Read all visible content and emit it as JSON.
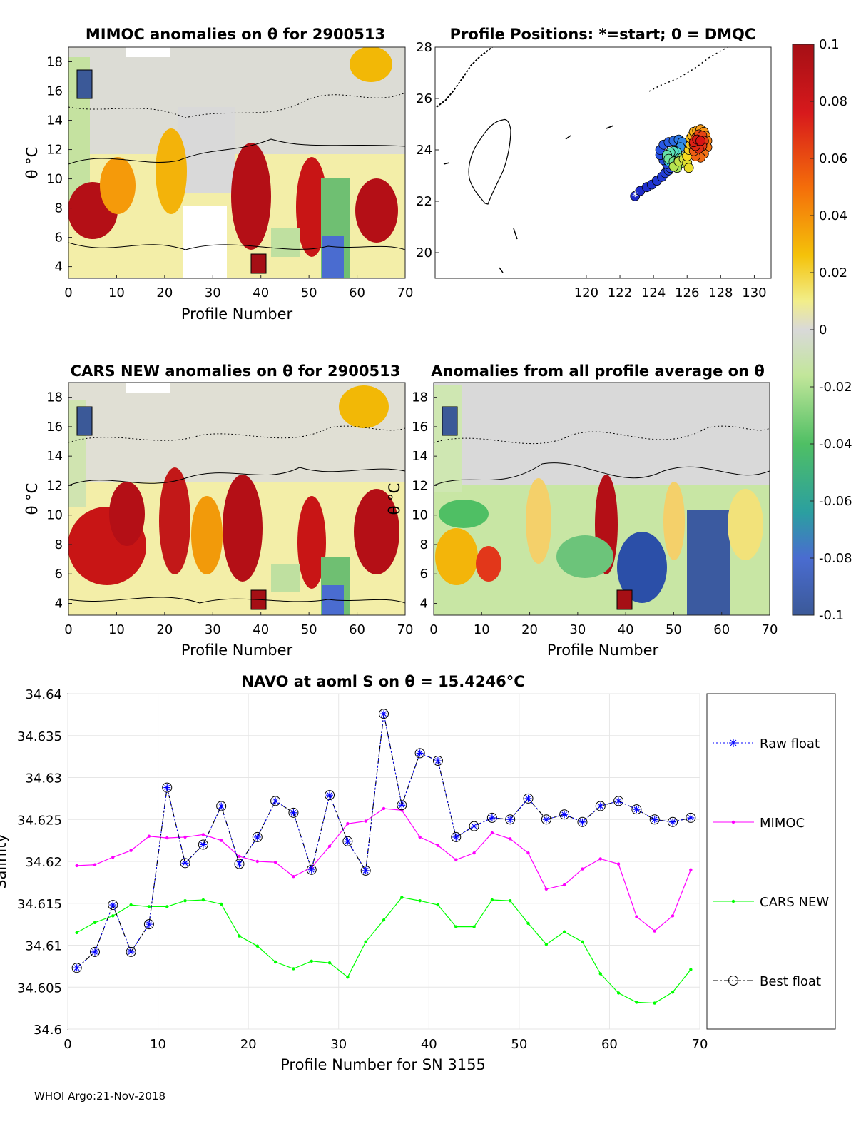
{
  "footer": "WHOI Argo:21-Nov-2018",
  "chart_data": [
    {
      "type": "heatmap",
      "id": "mimoc",
      "title": "MIMOC anomalies on θ  for 2900513",
      "xlabel": "Profile Number",
      "ylabel": "θ °C",
      "xlim": [
        0,
        70
      ],
      "ylim": [
        3.2,
        19
      ],
      "xticks": [
        0,
        10,
        20,
        30,
        40,
        50,
        60,
        70
      ],
      "yticks": [
        4,
        6,
        8,
        10,
        12,
        14,
        16,
        18
      ],
      "hot_columns": [
        2,
        3,
        4,
        5,
        6,
        7,
        8,
        9,
        10,
        11,
        12,
        13,
        14,
        15,
        16,
        17,
        18,
        36,
        37,
        38,
        39,
        40,
        41,
        47,
        48,
        49,
        50,
        51,
        60,
        61,
        62,
        63,
        64,
        65,
        66,
        67,
        68,
        69
      ]
    },
    {
      "type": "scatter",
      "id": "positions",
      "title": "Profile Positions: *=start; 0 = DMQC",
      "xlim": [
        111,
        131
      ],
      "ylim": [
        19,
        28
      ],
      "xticks": [
        120,
        122,
        124,
        126,
        128,
        130
      ],
      "yticks": [
        20,
        22,
        24,
        26,
        28
      ],
      "track": [
        {
          "lon": 122.9,
          "lat": 22.2
        },
        {
          "lon": 123.2,
          "lat": 22.4
        },
        {
          "lon": 123.6,
          "lat": 22.55
        },
        {
          "lon": 123.9,
          "lat": 22.65
        },
        {
          "lon": 124.2,
          "lat": 22.8
        },
        {
          "lon": 124.5,
          "lat": 22.95
        },
        {
          "lon": 124.7,
          "lat": 23.1
        },
        {
          "lon": 124.9,
          "lat": 23.2
        },
        {
          "lon": 125.0,
          "lat": 23.3
        },
        {
          "lon": 124.8,
          "lat": 23.45
        },
        {
          "lon": 124.6,
          "lat": 23.6
        },
        {
          "lon": 124.4,
          "lat": 23.8
        },
        {
          "lon": 124.4,
          "lat": 24.0
        },
        {
          "lon": 124.6,
          "lat": 24.2
        },
        {
          "lon": 124.9,
          "lat": 24.3
        },
        {
          "lon": 125.2,
          "lat": 24.35
        },
        {
          "lon": 125.5,
          "lat": 24.4
        },
        {
          "lon": 125.7,
          "lat": 24.3
        },
        {
          "lon": 125.6,
          "lat": 24.1
        },
        {
          "lon": 125.3,
          "lat": 23.95
        },
        {
          "lon": 125.0,
          "lat": 23.85
        },
        {
          "lon": 124.8,
          "lat": 23.7
        },
        {
          "lon": 124.9,
          "lat": 23.55
        },
        {
          "lon": 125.1,
          "lat": 23.5
        },
        {
          "lon": 125.3,
          "lat": 23.6
        },
        {
          "lon": 125.5,
          "lat": 23.75
        },
        {
          "lon": 125.4,
          "lat": 23.9
        },
        {
          "lon": 125.2,
          "lat": 23.95
        },
        {
          "lon": 125.0,
          "lat": 23.9
        },
        {
          "lon": 124.8,
          "lat": 23.8
        },
        {
          "lon": 124.9,
          "lat": 23.65
        },
        {
          "lon": 125.2,
          "lat": 23.55
        },
        {
          "lon": 125.5,
          "lat": 23.6
        },
        {
          "lon": 125.7,
          "lat": 23.7
        },
        {
          "lon": 125.9,
          "lat": 23.75
        },
        {
          "lon": 125.7,
          "lat": 23.5
        },
        {
          "lon": 125.4,
          "lat": 23.3
        },
        {
          "lon": 125.2,
          "lat": 23.35
        },
        {
          "lon": 125.5,
          "lat": 23.55
        },
        {
          "lon": 125.8,
          "lat": 23.65
        },
        {
          "lon": 126.0,
          "lat": 23.5
        },
        {
          "lon": 126.1,
          "lat": 23.3
        },
        {
          "lon": 126.0,
          "lat": 23.75
        },
        {
          "lon": 126.1,
          "lat": 24.0
        },
        {
          "lon": 126.2,
          "lat": 24.2
        },
        {
          "lon": 126.2,
          "lat": 24.45
        },
        {
          "lon": 126.3,
          "lat": 24.55
        },
        {
          "lon": 126.4,
          "lat": 24.7
        },
        {
          "lon": 126.6,
          "lat": 24.75
        },
        {
          "lon": 126.8,
          "lat": 24.8
        },
        {
          "lon": 127.0,
          "lat": 24.7
        },
        {
          "lon": 127.1,
          "lat": 24.55
        },
        {
          "lon": 127.2,
          "lat": 24.35
        },
        {
          "lon": 127.2,
          "lat": 24.1
        },
        {
          "lon": 127.0,
          "lat": 23.85
        },
        {
          "lon": 126.8,
          "lat": 23.7
        },
        {
          "lon": 126.5,
          "lat": 23.75
        },
        {
          "lon": 126.4,
          "lat": 23.95
        },
        {
          "lon": 126.4,
          "lat": 24.2
        },
        {
          "lon": 126.5,
          "lat": 24.45
        },
        {
          "lon": 126.7,
          "lat": 24.6
        },
        {
          "lon": 126.9,
          "lat": 24.55
        },
        {
          "lon": 127.0,
          "lat": 24.35
        },
        {
          "lon": 126.9,
          "lat": 24.15
        },
        {
          "lon": 126.7,
          "lat": 24.05
        },
        {
          "lon": 126.5,
          "lat": 24.15
        },
        {
          "lon": 126.4,
          "lat": 24.3
        },
        {
          "lon": 126.6,
          "lat": 24.4
        },
        {
          "lon": 126.8,
          "lat": 24.35
        }
      ]
    },
    {
      "type": "heatmap",
      "id": "colorbar",
      "ticks": [
        "0.1",
        "0.08",
        "0.06",
        "0.04",
        "0.02",
        "0",
        "-0.02",
        "-0.04",
        "-0.06",
        "-0.08",
        "-0.1"
      ],
      "range": [
        -0.1,
        0.1
      ]
    },
    {
      "type": "heatmap",
      "id": "cars",
      "title": "CARS NEW anomalies on θ for 2900513",
      "xlabel": "Profile Number",
      "ylabel": "θ °C",
      "xlim": [
        0,
        70
      ],
      "ylim": [
        3.2,
        19
      ],
      "xticks": [
        0,
        10,
        20,
        30,
        40,
        50,
        60,
        70
      ],
      "yticks": [
        4,
        6,
        8,
        10,
        12,
        14,
        16,
        18
      ]
    },
    {
      "type": "heatmap",
      "id": "allavg",
      "title": "Anomalies from all profile average on θ",
      "xlabel": "Profile Number",
      "ylabel": "θ °C",
      "xlim": [
        0,
        70
      ],
      "ylim": [
        3.2,
        19
      ],
      "xticks": [
        0,
        10,
        20,
        30,
        40,
        50,
        60,
        70
      ],
      "yticks": [
        4,
        6,
        8,
        10,
        12,
        14,
        16,
        18
      ]
    },
    {
      "type": "line",
      "id": "salinity",
      "title": "NAVO at aoml S on θ = 15.4246°C",
      "xlabel": "Profile Number for SN 3155",
      "ylabel": "Salinity",
      "xlim": [
        0,
        70
      ],
      "ylim": [
        34.6,
        34.64
      ],
      "xticks": [
        0,
        10,
        20,
        30,
        40,
        50,
        60,
        70
      ],
      "yticks": [
        "34.6",
        "34.605",
        "34.61",
        "34.615",
        "34.62",
        "34.625",
        "34.63",
        "34.635",
        "34.64"
      ],
      "x": [
        1,
        3,
        5,
        7,
        9,
        11,
        13,
        15,
        17,
        19,
        21,
        23,
        25,
        27,
        29,
        31,
        33,
        35,
        37,
        39,
        41,
        43,
        45,
        47,
        49,
        51,
        53,
        55,
        57,
        59,
        61,
        63,
        65,
        67,
        69
      ],
      "series": [
        {
          "name": "Raw float",
          "color": "#0000ff",
          "values": [
            34.6073,
            34.6092,
            34.6148,
            34.6092,
            34.6125,
            34.6288,
            34.6198,
            34.622,
            34.6266,
            34.6197,
            34.6229,
            34.6272,
            34.6258,
            34.619,
            34.6279,
            34.6224,
            34.6189,
            34.6376,
            34.6267,
            34.6329,
            34.632,
            34.6229,
            34.6242,
            34.6252,
            34.625,
            34.6275,
            34.625,
            34.6256,
            34.6247,
            34.6266,
            34.6272,
            34.6262,
            34.625,
            34.6247,
            34.6252
          ]
        },
        {
          "name": "MIMOC",
          "color": "#ff00ff",
          "values": [
            34.6195,
            34.6196,
            34.6205,
            34.6213,
            34.623,
            34.6228,
            34.6229,
            34.6232,
            34.6225,
            34.6206,
            34.62,
            34.6199,
            34.6182,
            34.6193,
            34.6218,
            34.6245,
            34.6248,
            34.6263,
            34.6261,
            34.6229,
            34.6219,
            34.6202,
            34.621,
            34.6234,
            34.6227,
            34.621,
            34.6167,
            34.6172,
            34.6191,
            34.6203,
            34.6197,
            34.6134,
            34.6117,
            34.6135,
            34.619
          ]
        },
        {
          "name": "CARS NEW",
          "color": "#00ff00",
          "values": [
            34.6115,
            34.6127,
            34.6135,
            34.6148,
            34.6146,
            34.6146,
            34.6153,
            34.6154,
            34.6149,
            34.6111,
            34.6099,
            34.608,
            34.6072,
            34.6081,
            34.6079,
            34.6062,
            34.6104,
            34.613,
            34.6157,
            34.6153,
            34.6148,
            34.6122,
            34.6122,
            34.6154,
            34.6153,
            34.6126,
            34.6101,
            34.6116,
            34.6104,
            34.6066,
            34.6043,
            34.6032,
            34.6031,
            34.6044,
            34.6071
          ]
        },
        {
          "name": "Best float",
          "color": "#000000",
          "values": [
            34.6073,
            34.6092,
            34.6148,
            34.6092,
            34.6125,
            34.6288,
            34.6198,
            34.622,
            34.6266,
            34.6197,
            34.6229,
            34.6272,
            34.6258,
            34.619,
            34.6279,
            34.6224,
            34.6189,
            34.6376,
            34.6267,
            34.6329,
            34.632,
            34.6229,
            34.6242,
            34.6252,
            34.625,
            34.6275,
            34.625,
            34.6256,
            34.6247,
            34.6266,
            34.6272,
            34.6262,
            34.625,
            34.6247,
            34.6252
          ]
        }
      ],
      "legend": [
        "Raw float",
        "MIMOC",
        "CARS NEW",
        "Best float"
      ],
      "legend_position": "right"
    }
  ]
}
